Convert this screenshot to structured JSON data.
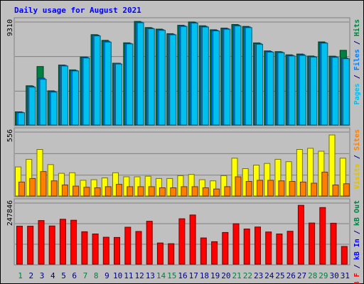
{
  "chart_data": {
    "type": "bar",
    "title": "Daily usage for August 2021",
    "categories": [
      "1",
      "2",
      "3",
      "4",
      "5",
      "6",
      "7",
      "8",
      "9",
      "10",
      "11",
      "12",
      "13",
      "14",
      "15",
      "16",
      "17",
      "18",
      "19",
      "20",
      "21",
      "22",
      "23",
      "24",
      "25",
      "26",
      "27",
      "28",
      "29",
      "30",
      "31"
    ],
    "weekend_days": [
      "1",
      "7",
      "8",
      "14",
      "15",
      "21",
      "22",
      "28",
      "29"
    ],
    "panels": [
      {
        "id": "pages-files-hits",
        "axis_label": "9310",
        "ylim": [
          0,
          9310
        ],
        "side_label": [
          {
            "text": "Pages",
            "color": "#00c0f0"
          },
          {
            "text": " / ",
            "color": "#000080"
          },
          {
            "text": "Files",
            "color": "#0080ff"
          },
          {
            "text": " / ",
            "color": "#000080"
          },
          {
            "text": "Hits",
            "color": "#008040"
          }
        ],
        "series": [
          {
            "name": "Hits",
            "color": "#008040",
            "values": [
              1180,
              3520,
              5250,
              3070,
              5380,
              4950,
              6100,
              8110,
              7600,
              5550,
              7380,
              9300,
              8750,
              8610,
              8200,
              8950,
              9250,
              8910,
              8550,
              8700,
              9020,
              8850,
              7370,
              6650,
              6590,
              6300,
              6370,
              6190,
              7460,
              6180,
              6700
            ]
          },
          {
            "name": "Files",
            "color": "#0080ff",
            "values": [
              1150,
              3480,
              4200,
              3010,
              5350,
              4900,
              6080,
              8070,
              7520,
              5540,
              7330,
              9240,
              8700,
              8560,
              8150,
              8900,
              9200,
              8860,
              8500,
              8650,
              8970,
              8800,
              7320,
              6600,
              6550,
              6250,
              6320,
              6150,
              7400,
              6130,
              6000
            ]
          },
          {
            "name": "Pages",
            "color": "#00c0f0",
            "values": [
              1100,
              3400,
              4100,
              2950,
              5300,
              4850,
              6020,
              8000,
              7450,
              5480,
              7280,
              9180,
              8650,
              8500,
              8100,
              8850,
              9150,
              8800,
              8450,
              8600,
              8900,
              8750,
              7250,
              6550,
              6500,
              6200,
              6250,
              6100,
              7350,
              6080,
              5950
            ]
          }
        ]
      },
      {
        "id": "visits-sites",
        "axis_label": "556",
        "ylim": [
          0,
          556
        ],
        "side_label": [
          {
            "text": "Visits",
            "color": "#e0c000"
          },
          {
            "text": " / ",
            "color": "#000080"
          },
          {
            "text": "Sites",
            "color": "#ff8000"
          }
        ],
        "series": [
          {
            "name": "Visits",
            "color": "#ffff00",
            "values": [
              250,
              315,
              400,
              270,
              195,
              200,
              135,
              140,
              155,
              200,
              165,
              165,
              170,
              150,
              150,
              175,
              185,
              140,
              130,
              175,
              325,
              235,
              265,
              280,
              315,
              295,
              400,
              410,
              385,
              525,
              325
            ]
          },
          {
            "name": "Sites",
            "color": "#ff8000",
            "values": [
              120,
              150,
              210,
              130,
              95,
              85,
              75,
              70,
              80,
              100,
              80,
              80,
              80,
              70,
              70,
              80,
              80,
              70,
              60,
              80,
              165,
              125,
              135,
              135,
              130,
              125,
              120,
              110,
              205,
              95,
              105
            ]
          }
        ]
      },
      {
        "id": "kbf-kbin-kbout",
        "axis_label": "247846",
        "ylim": [
          0,
          247846
        ],
        "side_label": [
          {
            "text": "kB F",
            "color": "#ff0000"
          },
          {
            "text": " / ",
            "color": "#000080"
          },
          {
            "text": "kB In",
            "color": "#0000ff"
          },
          {
            "text": " / ",
            "color": "#000080"
          },
          {
            "text": "kB Out",
            "color": "#008040"
          }
        ],
        "series": [
          {
            "name": "kB F",
            "color": "#ff0000",
            "values": [
              152000,
              152000,
              175000,
              153000,
              180000,
              176000,
              130000,
              121000,
              108000,
              107000,
              148000,
              131000,
              172000,
              85000,
              82000,
              182000,
              197000,
              105000,
              90000,
              127000,
              162000,
              141000,
              149000,
              129000,
              121000,
              132000,
              236000,
              165000,
              227000,
              164000,
              71000
            ]
          }
        ]
      }
    ]
  }
}
